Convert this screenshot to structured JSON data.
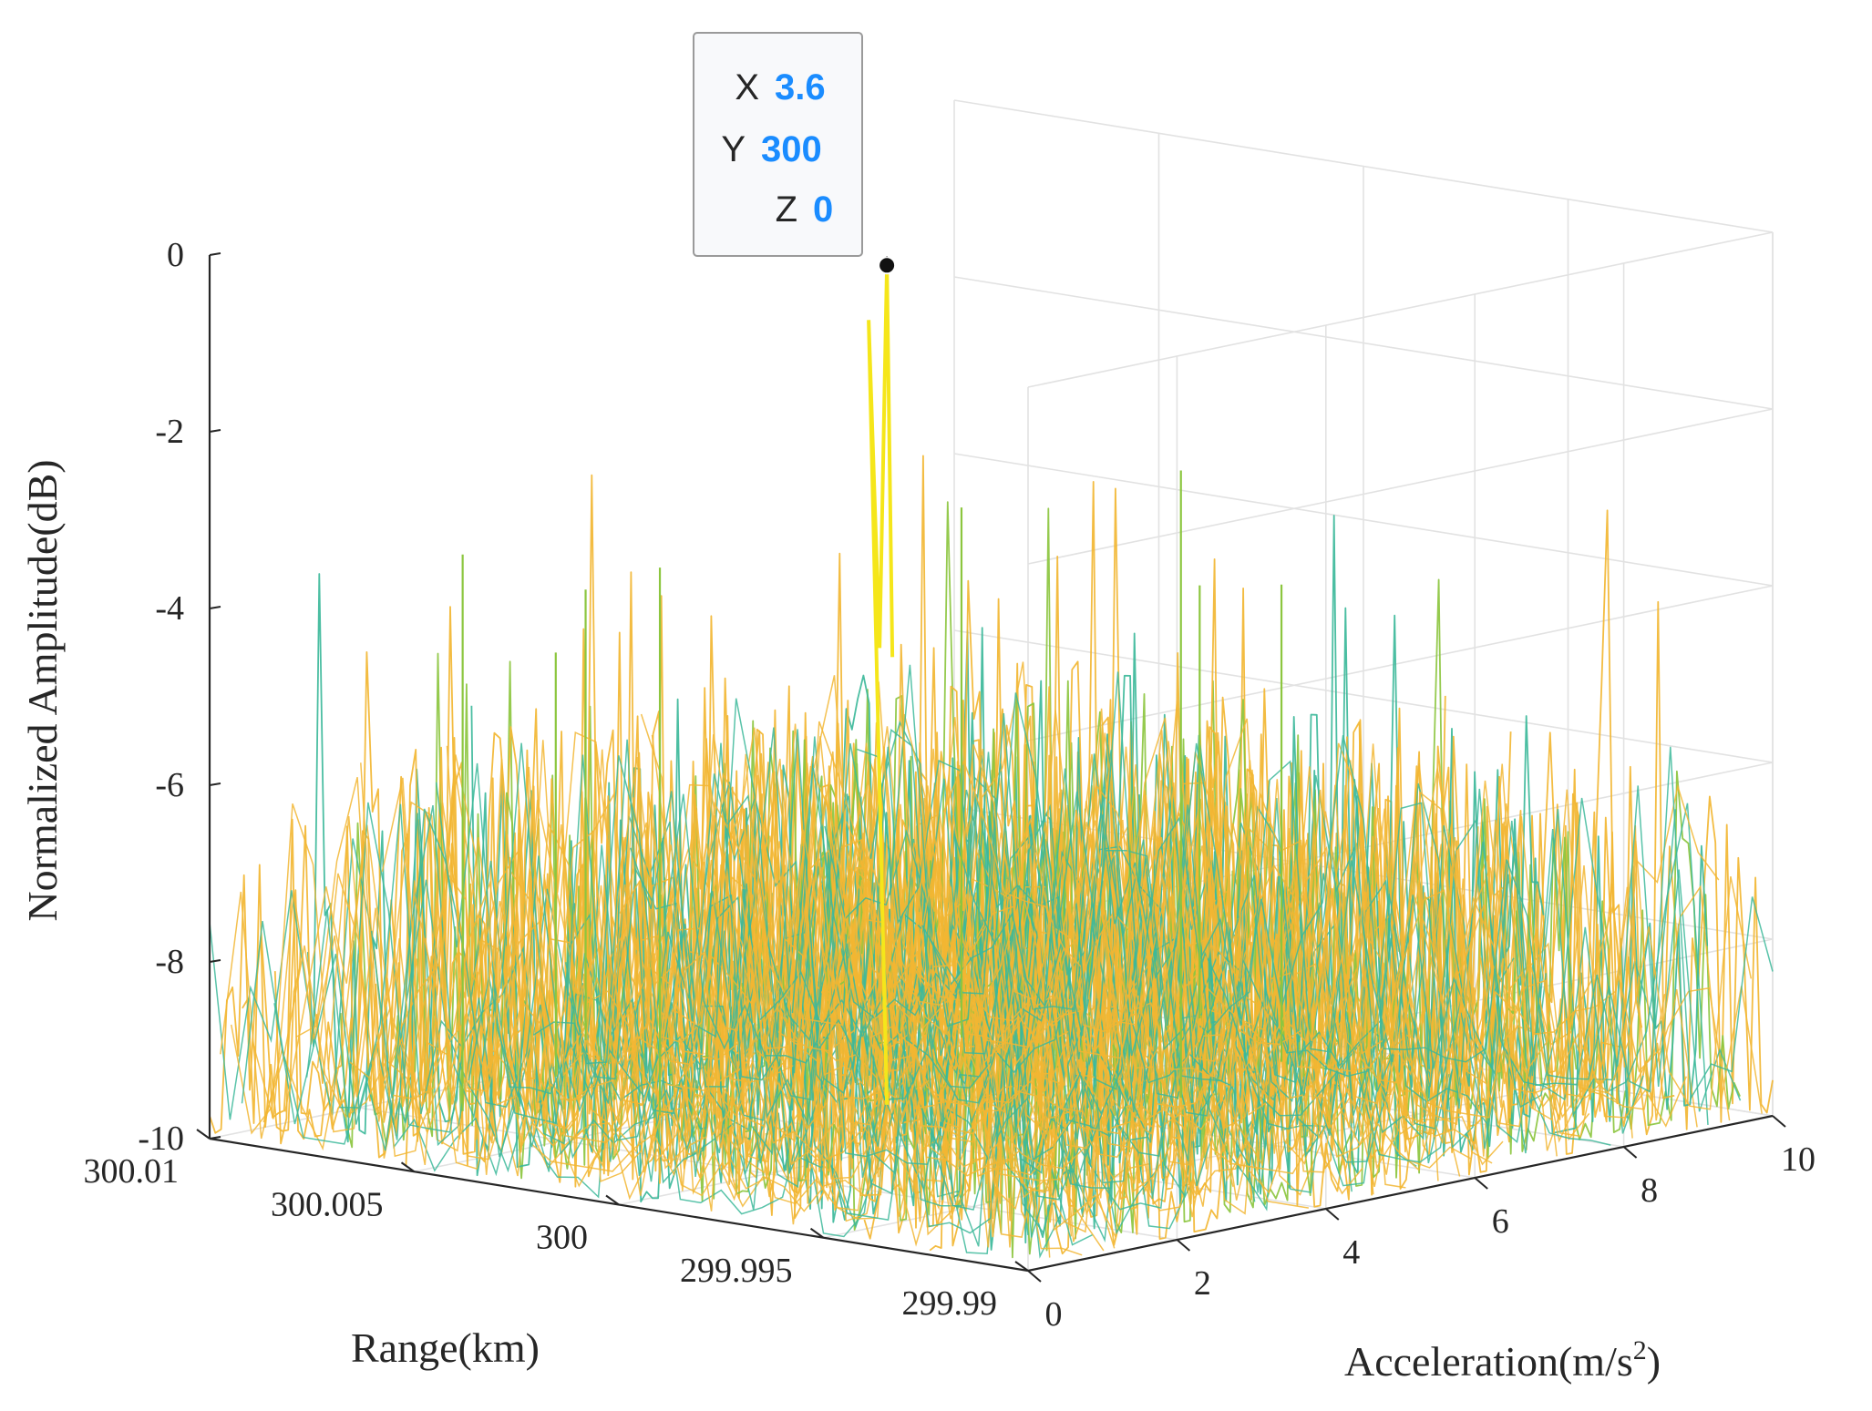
{
  "chart_data": {
    "type": "surface",
    "xlabel": "Acceleration(m/s",
    "xlabel_superscript": "2",
    "xlabel_close": ")",
    "ylabel": "Range(km)",
    "zlabel": "Normalized Amplitude(dB)",
    "xlim": [
      0,
      10
    ],
    "ylim": [
      299.99,
      300.01
    ],
    "zlim": [
      -10,
      0
    ],
    "x_ticks": [
      "0",
      "2",
      "4",
      "6",
      "8",
      "10"
    ],
    "y_ticks": [
      "300.01",
      "300.005",
      "300",
      "299.995",
      "299.99"
    ],
    "z_ticks": [
      "0",
      "-2",
      "-4",
      "-6",
      "-8",
      "-10"
    ],
    "grid": true,
    "colors": {
      "low": "#3cb89a",
      "mid": "#8cc63f",
      "high": "#f2b632",
      "peak": "#f5e61a"
    },
    "peak": {
      "x": 3.6,
      "y": 300,
      "z": 0
    },
    "datatip": {
      "x_key": "X",
      "x_value": "3.6",
      "y_key": "Y",
      "y_value": "300",
      "z_key": "Z",
      "z_value": "0"
    }
  }
}
